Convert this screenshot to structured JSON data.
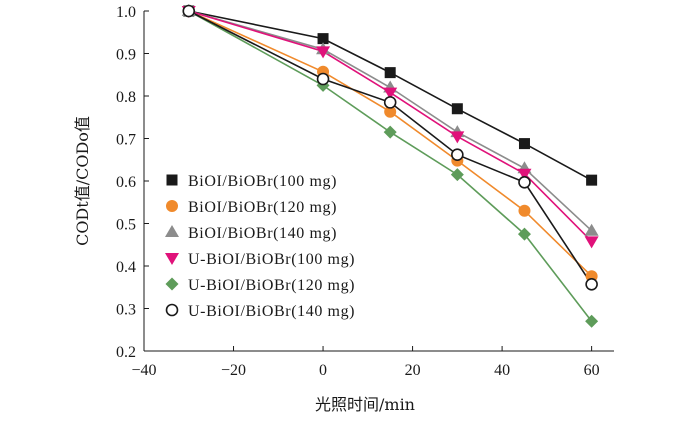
{
  "chart_data": {
    "type": "line",
    "title": "",
    "xlabel": "光照时间/min",
    "ylabel": "CODt值/CODo值",
    "xlim": [
      -40,
      65
    ],
    "ylim": [
      0.2,
      1.0
    ],
    "xticks": [
      -40,
      -20,
      0,
      20,
      40,
      60
    ],
    "xtick_labels": [
      "−40",
      "−20",
      "0",
      "20",
      "40",
      "60"
    ],
    "yticks": [
      0.2,
      0.3,
      0.4,
      0.5,
      0.6,
      0.7,
      0.8,
      0.9,
      1.0
    ],
    "ytick_labels": [
      "0.2",
      "0.3",
      "0.4",
      "0.5",
      "0.6",
      "0.7",
      "0.8",
      "0.9",
      "1.0"
    ],
    "grid": false,
    "legend_position": "center-left",
    "x": [
      -30,
      0,
      15,
      30,
      45,
      60
    ],
    "series": [
      {
        "name": "BiOI/BiOBr(100 mg)",
        "values": [
          1.0,
          0.935,
          0.855,
          0.77,
          0.688,
          0.602
        ],
        "color": "#1a1a1a",
        "marker": "square"
      },
      {
        "name": "BiOI/BiOBr(120 mg)",
        "values": [
          1.0,
          0.857,
          0.763,
          0.648,
          0.53,
          0.376
        ],
        "color": "#f08a2c",
        "marker": "circle"
      },
      {
        "name": "BiOI/BiOBr(140 mg)",
        "values": [
          1.0,
          0.91,
          0.82,
          0.715,
          0.63,
          0.483
        ],
        "color": "#8c8c8c",
        "marker": "triangle-up"
      },
      {
        "name": "U-BiOI/BiOBr(100 mg)",
        "values": [
          1.0,
          0.905,
          0.808,
          0.705,
          0.617,
          0.458
        ],
        "color": "#e0127a",
        "marker": "triangle-down"
      },
      {
        "name": "U-BiOI/BiOBr(120 mg)",
        "values": [
          1.0,
          0.825,
          0.715,
          0.615,
          0.475,
          0.27
        ],
        "color": "#5e9c5a",
        "marker": "diamond"
      },
      {
        "name": "U-BiOI/BiOBr(140 mg)",
        "values": [
          1.0,
          0.84,
          0.785,
          0.662,
          0.597,
          0.357
        ],
        "color": "#1a1a1a",
        "marker": "open-circle"
      }
    ]
  }
}
